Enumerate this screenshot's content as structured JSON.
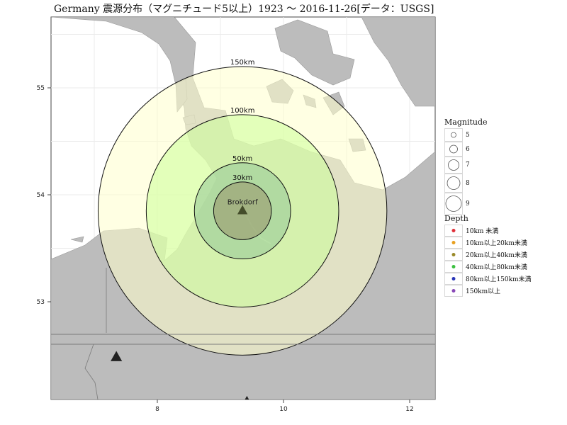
{
  "title": "Germany 震源分布（マグニチュード5以上）1923 〜 2016-11-26[データ：USGS]",
  "map": {
    "x_ticks": [
      "8",
      "10",
      "12"
    ],
    "y_ticks": [
      "55",
      "54",
      "53"
    ],
    "colors": {
      "land": "#bcbcbc",
      "sea": "#ffffff",
      "ring150": "#ffffcc",
      "ring100": "#ccff99",
      "ring50": "#99cc99",
      "ring30": "#99996f",
      "marker": "#444d2a"
    }
  },
  "site": {
    "name": "Brokdorf",
    "lon": 9.35,
    "lat": 53.85
  },
  "rings": [
    {
      "label": "150km",
      "radius_km": 150
    },
    {
      "label": "100km",
      "radius_km": 100
    },
    {
      "label": "50km",
      "radius_km": 50
    },
    {
      "label": "30km",
      "radius_km": 30
    }
  ],
  "other_sites": [
    {
      "lon": 7.35,
      "lat": 52.48
    },
    {
      "lon": 9.42,
      "lat": 52.08
    }
  ],
  "legend": {
    "magnitude": {
      "title": "Magnitude",
      "items": [
        "5",
        "6",
        "7",
        "8",
        "9"
      ]
    },
    "depth": {
      "title": "Depth",
      "items": [
        {
          "label": "10km 未満",
          "color": "#e0303a"
        },
        {
          "label": "10km以上20km未満",
          "color": "#e8a020"
        },
        {
          "label": "20km以上40km未満",
          "color": "#9a8a2a"
        },
        {
          "label": "40km以上80km未満",
          "color": "#3cc040"
        },
        {
          "label": "80km以上150km未満",
          "color": "#2a36b8"
        },
        {
          "label": "150km以上",
          "color": "#8a4ab8"
        }
      ]
    }
  }
}
